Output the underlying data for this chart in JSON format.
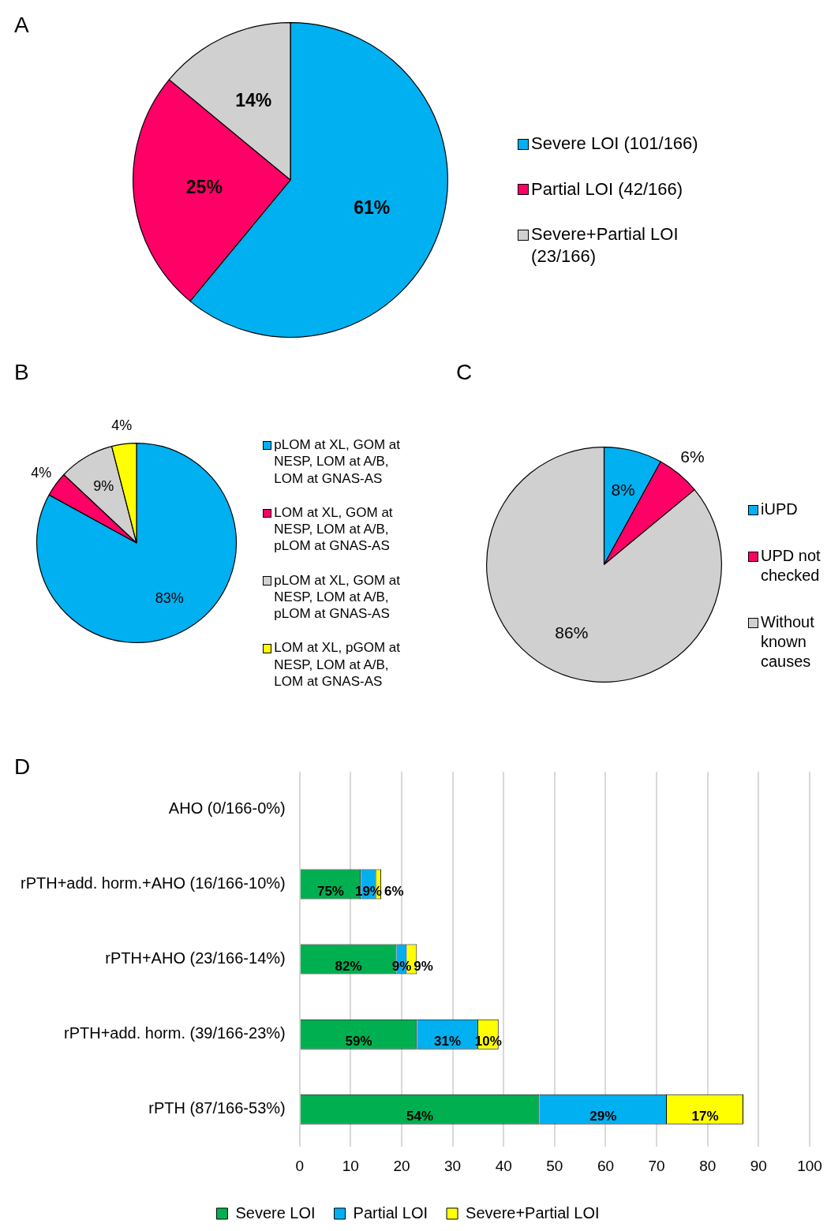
{
  "chart_data": [
    {
      "type": "pie",
      "title": "A",
      "categories": [
        "Severe LOI (101/166)",
        "Partial LOI (42/166)",
        "Severe+Partial LOI (23/166)"
      ],
      "values": [
        61,
        25,
        14
      ],
      "colors": [
        "#00b0f0",
        "#ff0066",
        "#d0d0d0"
      ],
      "value_labels": [
        "61%",
        "25%",
        "14%"
      ],
      "legend": "right"
    },
    {
      "type": "pie",
      "title": "B",
      "categories": [
        "pLOM at XL, GOM at NESP, LOM at A/B, LOM at GNAS-AS",
        "LOM at XL, GOM at NESP, LOM at A/B, pLOM at GNAS-AS",
        "pLOM at XL, GOM at NESP, LOM at A/B, pLOM at GNAS-AS",
        "LOM at XL, pGOM at NESP, LOM at A/B, LOM at GNAS-AS"
      ],
      "values": [
        83,
        4,
        9,
        4
      ],
      "colors": [
        "#00b0f0",
        "#ff0066",
        "#d0d0d0",
        "#ffff00"
      ],
      "value_labels": [
        "83%",
        "4%",
        "9%",
        "4%"
      ],
      "legend": "right"
    },
    {
      "type": "pie",
      "title": "C",
      "categories": [
        "iUPD",
        "UPD not checked",
        "Without known causes"
      ],
      "values": [
        8,
        6,
        86
      ],
      "colors": [
        "#00b0f0",
        "#ff0066",
        "#d0d0d0"
      ],
      "value_labels": [
        "8%",
        "6%",
        "86%"
      ],
      "legend": "right"
    },
    {
      "type": "bar",
      "title": "D",
      "orientation": "horizontal",
      "stacked": true,
      "categories": [
        "AHO (0/166-0%)",
        "rPTH+add. horm.+AHO (16/166-10%)",
        "rPTH+AHO (23/166-14%)",
        "rPTH+add. horm. (39/166-23%)",
        "rPTH (87/166-53%)"
      ],
      "series": [
        {
          "name": "Severe LOI",
          "color": "#00b050",
          "values": [
            0,
            12,
            19,
            23,
            47
          ]
        },
        {
          "name": "Partial LOI",
          "color": "#00b0f0",
          "values": [
            0,
            3,
            2,
            12,
            25
          ]
        },
        {
          "name": "Severe+Partial LOI",
          "color": "#ffff00",
          "values": [
            0,
            1,
            2,
            4,
            15
          ]
        }
      ],
      "annotations": [
        "75%",
        "19%",
        "6%",
        "82%",
        "9%",
        "9%",
        "59%",
        "31%",
        "10%",
        "54%",
        "29%",
        "17%"
      ],
      "xlim": [
        0,
        100
      ],
      "xticks": [
        0,
        10,
        20,
        30,
        40,
        50,
        60,
        70,
        80,
        90,
        100
      ],
      "grid": "x",
      "legend": "bottom"
    }
  ]
}
